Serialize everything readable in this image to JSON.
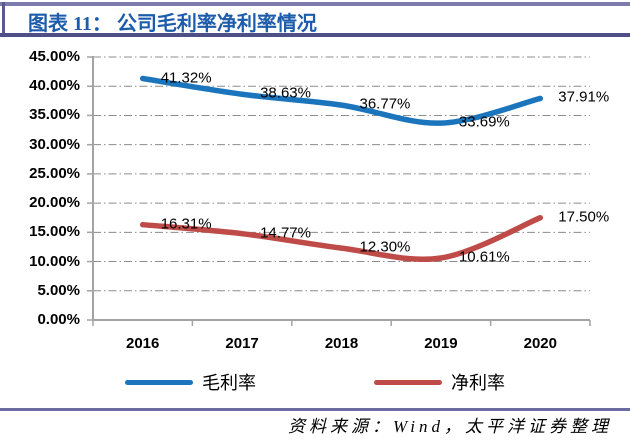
{
  "header": {
    "title": "图表 11： 公司毛利率净利率情况"
  },
  "footer": {
    "source": "资料来源：Wind，太平洋证券整理"
  },
  "colors": {
    "gross_margin_line": "#1b75bc",
    "net_margin_line": "#bf4b48",
    "title_blue": "#1d5cab",
    "frame_purple": "#6b6ba1"
  },
  "chart_data": {
    "type": "line",
    "title": "公司毛利率净利率情况",
    "categories": [
      "2016",
      "2017",
      "2018",
      "2019",
      "2020"
    ],
    "series": [
      {
        "name": "毛利率",
        "color": "#1b75bc",
        "values": [
          41.32,
          38.63,
          36.77,
          33.69,
          37.91
        ],
        "labels": [
          "41.32%",
          "38.63%",
          "36.77%",
          "33.69%",
          "37.91%"
        ]
      },
      {
        "name": "净利率",
        "color": "#bf4b48",
        "values": [
          16.31,
          14.77,
          12.3,
          10.61,
          17.5
        ],
        "labels": [
          "16.31%",
          "14.77%",
          "12.30%",
          "10.61%",
          "17.50%"
        ]
      }
    ],
    "ylim": [
      0,
      45
    ],
    "ytick_step": 5,
    "y_ticks": [
      "0.00%",
      "5.00%",
      "10.00%",
      "15.00%",
      "20.00%",
      "25.00%",
      "30.00%",
      "35.00%",
      "40.00%",
      "45.00%"
    ],
    "grid": "horizontal dash-dot gridlines",
    "legend_position": "bottom",
    "smooth": true
  }
}
